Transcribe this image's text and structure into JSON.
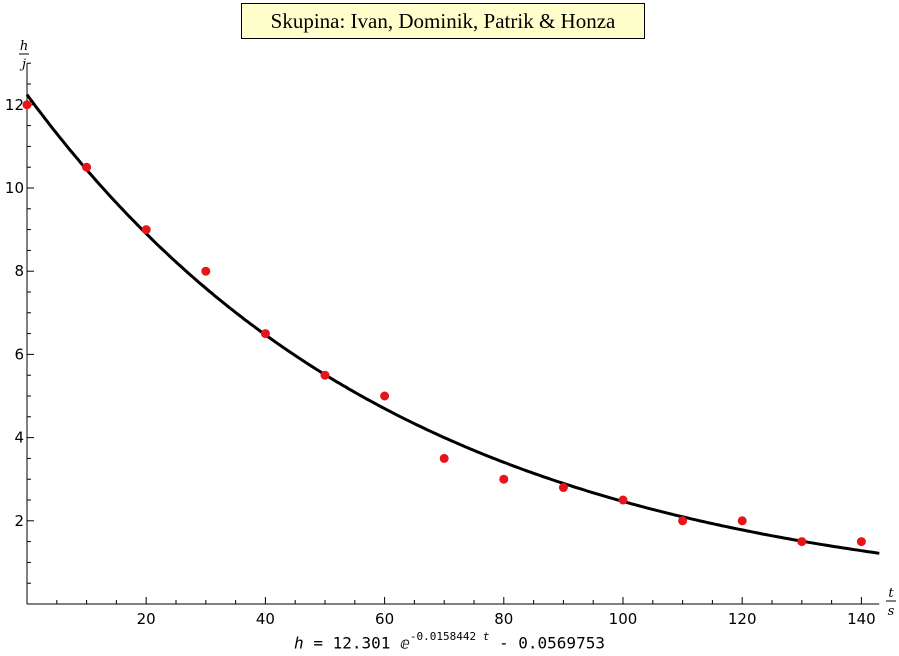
{
  "title": "Skupina: Ivan, Dominik, Patrik & Honza",
  "chart_data": {
    "type": "scatter",
    "x_axis": {
      "label_num": "t",
      "label_den": "s",
      "range": [
        0,
        143
      ],
      "ticks": [
        20,
        40,
        60,
        80,
        100,
        120,
        140
      ],
      "minor_step": 5
    },
    "y_axis": {
      "label_num": "h",
      "label_den": "j",
      "range": [
        0,
        13
      ],
      "ticks": [
        2,
        4,
        6,
        8,
        10,
        12
      ],
      "minor_step": 0.5
    },
    "points": [
      {
        "x": 0,
        "y": 12
      },
      {
        "x": 10,
        "y": 10.5
      },
      {
        "x": 20,
        "y": 9
      },
      {
        "x": 30,
        "y": 8
      },
      {
        "x": 40,
        "y": 6.5
      },
      {
        "x": 50,
        "y": 5.5
      },
      {
        "x": 60,
        "y": 5
      },
      {
        "x": 70,
        "y": 3.5
      },
      {
        "x": 80,
        "y": 3
      },
      {
        "x": 90,
        "y": 2.8
      },
      {
        "x": 100,
        "y": 2.5
      },
      {
        "x": 110,
        "y": 2
      },
      {
        "x": 120,
        "y": 2
      },
      {
        "x": 130,
        "y": 1.5
      },
      {
        "x": 140,
        "y": 1.5
      }
    ],
    "fit": {
      "a": 12.301,
      "b": 0.0158442,
      "c": -0.0569753
    },
    "point_color": "#e8141c",
    "curve_color": "#000000",
    "grid": false
  },
  "formula": {
    "lhs": "h",
    "eq": "=",
    "coef": "12.301",
    "base": "ⅇ",
    "exp_num": "-0.0158442",
    "exp_var": "t",
    "tail": "- 0.0569753"
  }
}
